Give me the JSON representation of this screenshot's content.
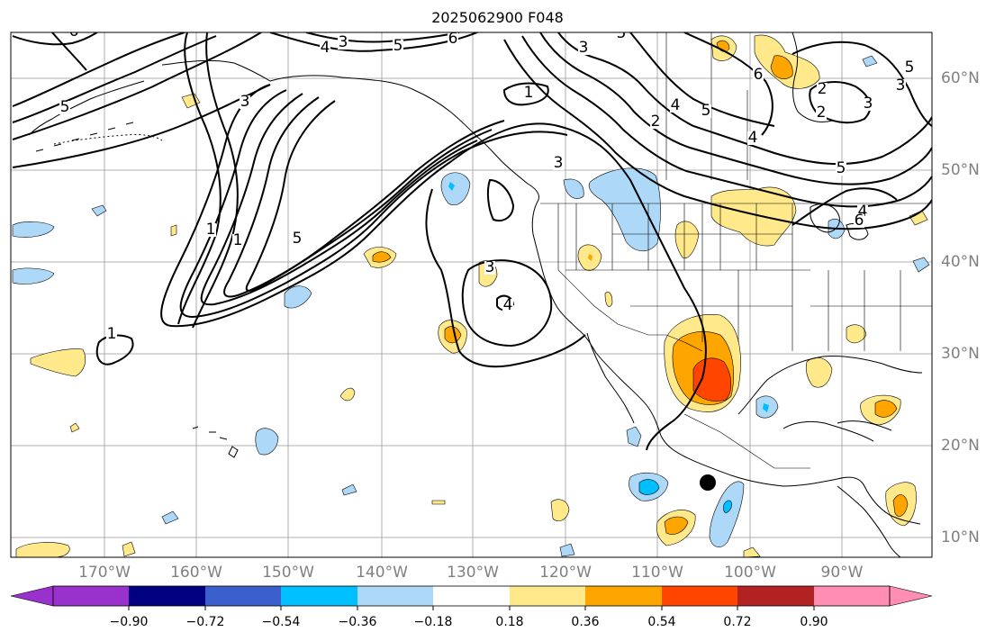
{
  "title": "2025062900 F048",
  "lon_labels": [
    "170°W",
    "160°W",
    "150°W",
    "140°W",
    "130°W",
    "120°W",
    "110°W",
    "100°W",
    "90°W"
  ],
  "lat_labels": [
    "60°N",
    "50°N",
    "40°N",
    "30°N",
    "20°N",
    "10°N"
  ],
  "colorbar": {
    "ticks": [
      "−0.90",
      "−0.72",
      "−0.54",
      "−0.36",
      "−0.18",
      "0.18",
      "0.36",
      "0.54",
      "0.72",
      "0.90"
    ],
    "colors": [
      "#9932cc",
      "#000080",
      "#3a5fcd",
      "#00bfff",
      "#add8f8",
      "#ffffff",
      "#ffe98a",
      "#ffa500",
      "#ff4500",
      "#b22222",
      "#ff8db4"
    ]
  },
  "contour_labels": [
    {
      "text": "1"
    },
    {
      "text": "1"
    },
    {
      "text": "1"
    },
    {
      "text": "1"
    },
    {
      "text": "2"
    },
    {
      "text": "2"
    },
    {
      "text": "2"
    },
    {
      "text": "3"
    },
    {
      "text": "3"
    },
    {
      "text": "3"
    },
    {
      "text": "3"
    },
    {
      "text": "3"
    },
    {
      "text": "3"
    },
    {
      "text": "3"
    },
    {
      "text": "4"
    },
    {
      "text": "4"
    },
    {
      "text": "4"
    },
    {
      "text": "4"
    },
    {
      "text": "4"
    },
    {
      "text": "5"
    },
    {
      "text": "5"
    },
    {
      "text": "5"
    },
    {
      "text": "5"
    },
    {
      "text": "5"
    },
    {
      "text": "5"
    },
    {
      "text": "5"
    },
    {
      "text": "6"
    },
    {
      "text": "6"
    },
    {
      "text": "6"
    },
    {
      "text": "6"
    }
  ],
  "marker": "storm-center-dot"
}
